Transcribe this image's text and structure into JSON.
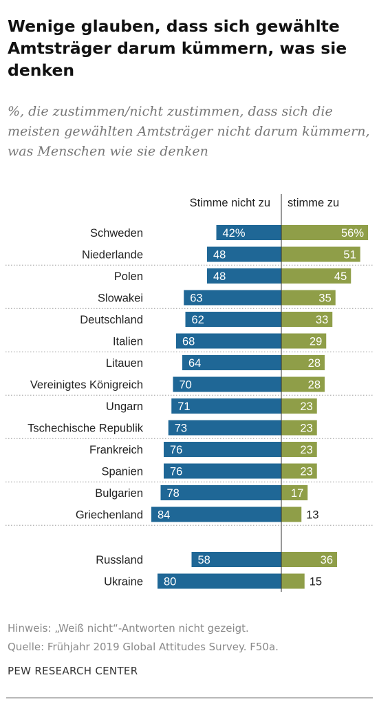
{
  "header": {
    "title": "Wenige glauben, dass sich gewählte Amtsträger darum kümmern, was sie denken",
    "subtitle": "%, die zustimmen/nicht zustimmen, dass sich die meisten gewählten Amtsträger nicht darum kümmern, was Menschen wie sie denken"
  },
  "footer": {
    "note": "Hinweis: „Weiß nicht“-Antworten nicht gezeigt.",
    "source": "Quelle: Frühjahr 2019 Global Attitudes Survey. F50a.",
    "brand": "PEW RESEARCH CENTER"
  },
  "chart_data": {
    "type": "bar",
    "orientation": "diverging-horizontal",
    "column_headers": {
      "disagree": "Stimme nicht zu",
      "agree": "stimme zu"
    },
    "categories": [
      "Schweden",
      "Niederlande",
      "Polen",
      "Slowakei",
      "Deutschland",
      "Italien",
      "Litauen",
      "Vereinigtes Königreich",
      "Ungarn",
      "Tschechische Republik",
      "Frankreich",
      "Spanien",
      "Bulgarien",
      "Griechenland",
      "Russland",
      "Ukraine"
    ],
    "series": [
      {
        "name": "Stimme nicht zu",
        "color": "#1f6796",
        "values": [
          42,
          48,
          48,
          63,
          62,
          68,
          64,
          70,
          71,
          73,
          76,
          76,
          78,
          84,
          58,
          80
        ],
        "labels": [
          "42%",
          "48",
          "48",
          "63",
          "62",
          "68",
          "64",
          "70",
          "71",
          "73",
          "76",
          "76",
          "78",
          "84",
          "58",
          "80"
        ]
      },
      {
        "name": "stimme zu",
        "color": "#8f9e48",
        "values": [
          56,
          51,
          45,
          35,
          33,
          29,
          28,
          28,
          23,
          23,
          23,
          23,
          17,
          13,
          36,
          15
        ],
        "labels": [
          "56%",
          "51",
          "45",
          "35",
          "33",
          "29",
          "28",
          "28",
          "23",
          "23",
          "23",
          "23",
          "17",
          "13",
          "36",
          "15"
        ]
      }
    ],
    "groups": [
      2,
      2,
      2,
      2,
      2,
      2,
      2,
      2
    ],
    "grid": false
  }
}
